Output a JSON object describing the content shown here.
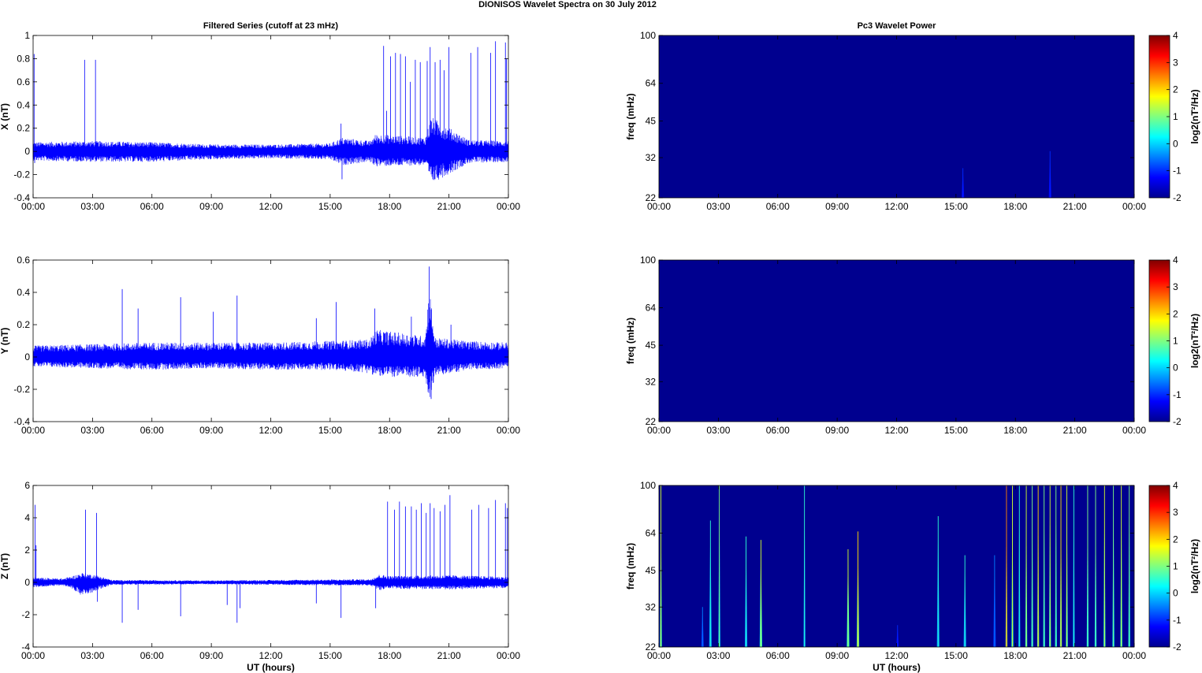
{
  "figure_title": "DIONISOS Wavelet Spectra on 30 July      2012",
  "colors": {
    "trace": "#0000ff",
    "background_cmap": "#00008f",
    "axes": "#000000"
  },
  "chart_data": [
    {
      "id": "x-series",
      "type": "line",
      "title": "Filtered Series (cutoff at 23 mHz)",
      "xlabel": "",
      "ylabel": "X (nT)",
      "xlim": [
        0,
        24
      ],
      "ylim": [
        -0.4,
        1
      ],
      "xticks": [
        "00:00",
        "03:00",
        "06:00",
        "09:00",
        "12:00",
        "15:00",
        "18:00",
        "21:00",
        "00:00"
      ],
      "yticks": [
        "-0.4",
        "-0.2",
        "0",
        "0.2",
        "0.4",
        "0.6",
        "0.8",
        "1"
      ],
      "ytick_values": [
        -0.4,
        -0.2,
        0,
        0.2,
        0.4,
        0.6,
        0.8,
        1
      ],
      "noise_envelope": {
        "x": [
          0,
          3,
          6,
          9,
          12,
          15,
          15.6,
          17,
          17.3,
          19.8,
          20.1,
          22,
          24
        ],
        "upper": [
          0.08,
          0.09,
          0.08,
          0.06,
          0.06,
          0.07,
          0.12,
          0.09,
          0.15,
          0.12,
          0.3,
          0.1,
          0.09
        ],
        "lower": [
          -0.08,
          -0.09,
          -0.09,
          -0.07,
          -0.06,
          -0.07,
          -0.12,
          -0.09,
          -0.13,
          -0.12,
          -0.28,
          -0.1,
          -0.09
        ]
      },
      "spikes": [
        [
          0.05,
          0.84
        ],
        [
          0.08,
          -0.1
        ],
        [
          2.6,
          0.79
        ],
        [
          3.15,
          0.79
        ],
        [
          15.55,
          0.24
        ],
        [
          15.6,
          -0.24
        ],
        [
          17.7,
          0.91
        ],
        [
          17.85,
          0.35
        ],
        [
          18.05,
          0.82
        ],
        [
          18.3,
          0.85
        ],
        [
          18.55,
          0.84
        ],
        [
          18.8,
          0.82
        ],
        [
          19.05,
          0.6
        ],
        [
          19.3,
          0.79
        ],
        [
          19.55,
          0.77
        ],
        [
          19.9,
          0.78
        ],
        [
          20.05,
          0.9
        ],
        [
          20.3,
          0.77
        ],
        [
          20.55,
          0.79
        ],
        [
          20.75,
          0.7
        ],
        [
          21.0,
          0.9
        ],
        [
          22.1,
          0.85
        ],
        [
          22.45,
          0.9
        ],
        [
          23.1,
          0.85
        ],
        [
          23.35,
          0.95
        ],
        [
          23.85,
          0.94
        ],
        [
          23.9,
          0.8
        ]
      ]
    },
    {
      "id": "y-series",
      "type": "line",
      "title": "",
      "xlabel": "",
      "ylabel": "Y (nT)",
      "xlim": [
        0,
        24
      ],
      "ylim": [
        -0.4,
        0.6
      ],
      "xticks": [
        "00:00",
        "03:00",
        "06:00",
        "09:00",
        "12:00",
        "15:00",
        "18:00",
        "21:00",
        "00:00"
      ],
      "yticks": [
        "-0.4",
        "-0.2",
        "0",
        "0.2",
        "0.4",
        "0.6"
      ],
      "ytick_values": [
        -0.4,
        -0.2,
        0,
        0.2,
        0.4,
        0.6
      ],
      "noise_envelope": {
        "x": [
          0,
          3,
          6,
          9,
          12,
          15,
          17,
          17.3,
          19.8,
          20.0,
          20.3,
          22,
          24
        ],
        "upper": [
          0.07,
          0.08,
          0.09,
          0.09,
          0.09,
          0.1,
          0.11,
          0.17,
          0.13,
          0.45,
          0.12,
          0.1,
          0.09
        ],
        "lower": [
          -0.06,
          -0.07,
          -0.08,
          -0.07,
          -0.08,
          -0.08,
          -0.1,
          -0.12,
          -0.13,
          -0.27,
          -0.12,
          -0.08,
          -0.07
        ]
      },
      "spikes": [
        [
          4.5,
          0.42
        ],
        [
          5.3,
          0.3
        ],
        [
          7.45,
          0.37
        ],
        [
          9.1,
          0.28
        ],
        [
          10.3,
          0.38
        ],
        [
          10.5,
          -0.06
        ],
        [
          14.3,
          0.24
        ],
        [
          15.3,
          0.34
        ],
        [
          15.55,
          -0.03
        ],
        [
          17.25,
          0.3
        ],
        [
          19.1,
          0.25
        ],
        [
          20.0,
          0.56
        ],
        [
          20.1,
          -0.26
        ],
        [
          21.1,
          0.2
        ]
      ]
    },
    {
      "id": "z-series",
      "type": "line",
      "title": "",
      "xlabel": "UT (hours)",
      "ylabel": "Z (nT)",
      "xlim": [
        0,
        24
      ],
      "ylim": [
        -4,
        6
      ],
      "xticks": [
        "00:00",
        "03:00",
        "06:00",
        "09:00",
        "12:00",
        "15:00",
        "18:00",
        "21:00",
        "00:00"
      ],
      "yticks": [
        "-4",
        "-2",
        "0",
        "2",
        "4",
        "6"
      ],
      "ytick_values": [
        -4,
        -2,
        0,
        2,
        4,
        6
      ],
      "noise_envelope": {
        "x": [
          0,
          1.5,
          2.0,
          2.5,
          3.2,
          4,
          9,
          12,
          17.0,
          17.5,
          18,
          21,
          24
        ],
        "upper": [
          0.3,
          0.25,
          0.4,
          0.6,
          0.45,
          0.15,
          0.12,
          0.15,
          0.2,
          0.5,
          0.4,
          0.45,
          0.35
        ],
        "lower": [
          -0.3,
          -0.2,
          -0.4,
          -0.9,
          -0.5,
          -0.15,
          -0.12,
          -0.15,
          -0.2,
          -0.5,
          -0.4,
          -0.45,
          -0.35
        ]
      },
      "spikes": [
        [
          0.1,
          4.8
        ],
        [
          0.15,
          2.3
        ],
        [
          2.65,
          4.5
        ],
        [
          2.75,
          -0.5
        ],
        [
          3.2,
          4.3
        ],
        [
          3.25,
          -1.2
        ],
        [
          4.5,
          -2.5
        ],
        [
          5.3,
          -1.7
        ],
        [
          7.45,
          -2.1
        ],
        [
          9.8,
          -1.4
        ],
        [
          10.3,
          -2.5
        ],
        [
          10.45,
          -1.6
        ],
        [
          14.3,
          -1.3
        ],
        [
          15.55,
          -2.2
        ],
        [
          17.3,
          -1.6
        ],
        [
          17.9,
          5.0
        ],
        [
          18.25,
          4.5
        ],
        [
          18.5,
          5.0
        ],
        [
          18.8,
          4.7
        ],
        [
          19.1,
          4.7
        ],
        [
          19.35,
          4.5
        ],
        [
          19.6,
          4.9
        ],
        [
          19.85,
          4.3
        ],
        [
          20.05,
          4.9
        ],
        [
          20.25,
          4.6
        ],
        [
          20.55,
          4.4
        ],
        [
          20.8,
          4.8
        ],
        [
          21.05,
          5.4
        ],
        [
          22.15,
          4.5
        ],
        [
          22.5,
          4.8
        ],
        [
          23.0,
          4.6
        ],
        [
          23.35,
          5.1
        ],
        [
          23.85,
          4.9
        ],
        [
          23.95,
          4.6
        ]
      ]
    },
    {
      "id": "x-wavelet",
      "type": "heatmap",
      "title": "Pc3 Wavelet Power",
      "xlabel": "",
      "ylabel": "freq (mHz)",
      "xlim": [
        0,
        24
      ],
      "ylim": [
        22,
        100
      ],
      "yscale": "log",
      "xticks": [
        "00:00",
        "03:00",
        "06:00",
        "09:00",
        "12:00",
        "15:00",
        "18:00",
        "21:00",
        "00:00"
      ],
      "yticks": [
        "22",
        "32",
        "45",
        "64",
        "100"
      ],
      "ytick_values": [
        22,
        32,
        45,
        64,
        100
      ],
      "colorbar": {
        "label": "log2(nT²/Hz)",
        "range": [
          -2,
          4
        ],
        "ticks": [
          "-2",
          "-1",
          "0",
          "1",
          "2",
          "3",
          "4"
        ]
      },
      "background_level": -2,
      "streaks": [
        {
          "t": 15.35,
          "top_freq": 29,
          "level": -1
        },
        {
          "t": 19.75,
          "top_freq": 34,
          "level": -1
        }
      ]
    },
    {
      "id": "y-wavelet",
      "type": "heatmap",
      "title": "",
      "xlabel": "",
      "ylabel": "freq (mHz)",
      "xlim": [
        0,
        24
      ],
      "ylim": [
        22,
        100
      ],
      "yscale": "log",
      "xticks": [
        "00:00",
        "03:00",
        "06:00",
        "09:00",
        "12:00",
        "15:00",
        "18:00",
        "21:00",
        "00:00"
      ],
      "yticks": [
        "22",
        "32",
        "45",
        "64",
        "100"
      ],
      "ytick_values": [
        22,
        32,
        45,
        64,
        100
      ],
      "colorbar": {
        "label": "log2(nT²/Hz)",
        "range": [
          -2,
          4
        ],
        "ticks": [
          "-2",
          "-1",
          "0",
          "1",
          "2",
          "3",
          "4"
        ]
      },
      "background_level": -2,
      "streaks": []
    },
    {
      "id": "z-wavelet",
      "type": "heatmap",
      "title": "",
      "xlabel": "UT (hours)",
      "ylabel": "freq (mHz)",
      "xlim": [
        0,
        24
      ],
      "ylim": [
        22,
        100
      ],
      "yscale": "log",
      "xticks": [
        "00:00",
        "03:00",
        "06:00",
        "09:00",
        "12:00",
        "15:00",
        "18:00",
        "21:00",
        "00:00"
      ],
      "yticks": [
        "22",
        "32",
        "45",
        "64",
        "100"
      ],
      "ytick_values": [
        22,
        32,
        45,
        64,
        100
      ],
      "colorbar": {
        "label": "log2(nT²/Hz)",
        "range": [
          -2,
          4
        ],
        "ticks": [
          "-2",
          "-1",
          "0",
          "1",
          "2",
          "3",
          "4"
        ]
      },
      "background_level": -2,
      "streaks": [
        {
          "t": 0.1,
          "top_freq": 100,
          "level": 1.5
        },
        {
          "t": 2.2,
          "top_freq": 32,
          "level": -0.5
        },
        {
          "t": 2.6,
          "top_freq": 72,
          "level": 0.5
        },
        {
          "t": 3.05,
          "top_freq": 100,
          "level": 1
        },
        {
          "t": 4.4,
          "top_freq": 62,
          "level": 0.5
        },
        {
          "t": 5.15,
          "top_freq": 60,
          "level": 1.5
        },
        {
          "t": 7.35,
          "top_freq": 100,
          "level": 0.5
        },
        {
          "t": 9.55,
          "top_freq": 55,
          "level": 1.5
        },
        {
          "t": 10.05,
          "top_freq": 65,
          "level": 2
        },
        {
          "t": 12.05,
          "top_freq": 27,
          "level": -1
        },
        {
          "t": 14.1,
          "top_freq": 75,
          "level": 0.5
        },
        {
          "t": 15.45,
          "top_freq": 52,
          "level": 0.5
        },
        {
          "t": 16.95,
          "top_freq": 52,
          "level": -0.5
        },
        {
          "t": 17.55,
          "top_freq": 100,
          "level": 2.5
        },
        {
          "t": 17.85,
          "top_freq": 100,
          "level": 1.5
        },
        {
          "t": 18.2,
          "top_freq": 100,
          "level": 0.5
        },
        {
          "t": 18.55,
          "top_freq": 100,
          "level": 1.5
        },
        {
          "t": 18.85,
          "top_freq": 100,
          "level": 1
        },
        {
          "t": 19.15,
          "top_freq": 100,
          "level": 2
        },
        {
          "t": 19.45,
          "top_freq": 100,
          "level": 1
        },
        {
          "t": 19.75,
          "top_freq": 100,
          "level": 1.5
        },
        {
          "t": 20.05,
          "top_freq": 100,
          "level": 1
        },
        {
          "t": 20.3,
          "top_freq": 100,
          "level": 2
        },
        {
          "t": 20.6,
          "top_freq": 100,
          "level": 1.5
        },
        {
          "t": 20.95,
          "top_freq": 100,
          "level": 0.5
        },
        {
          "t": 21.65,
          "top_freq": 100,
          "level": 1
        },
        {
          "t": 22.05,
          "top_freq": 100,
          "level": 1
        },
        {
          "t": 22.5,
          "top_freq": 100,
          "level": 1.5
        },
        {
          "t": 22.95,
          "top_freq": 100,
          "level": 1
        },
        {
          "t": 23.35,
          "top_freq": 100,
          "level": 1.5
        },
        {
          "t": 23.75,
          "top_freq": 100,
          "level": 1
        }
      ]
    }
  ]
}
